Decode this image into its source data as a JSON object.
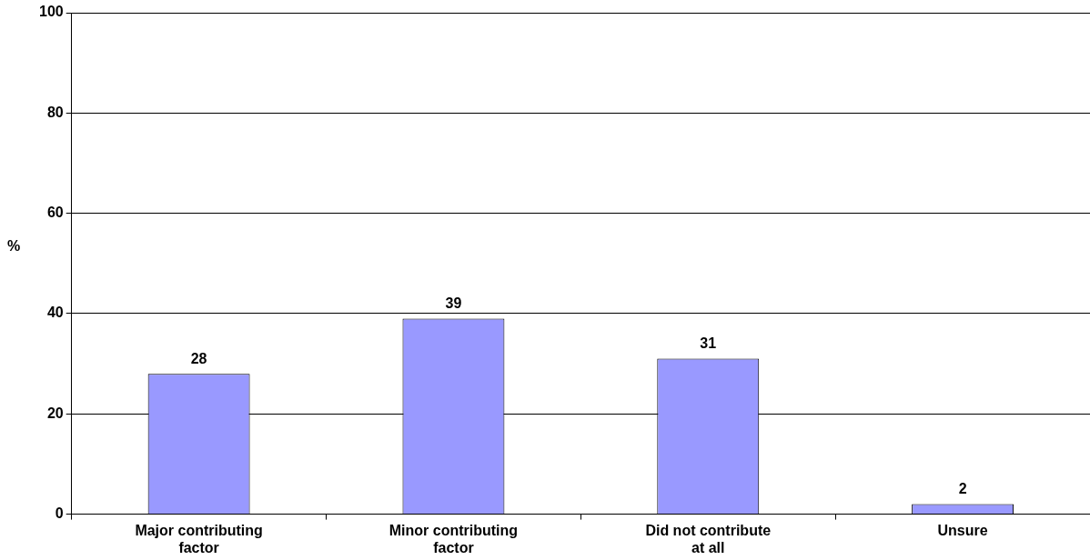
{
  "chart_data": {
    "type": "bar",
    "ylabel": "%",
    "categories": [
      "Major contributing factor",
      "Minor contributing factor",
      "Did not contribute at all",
      "Unsure"
    ],
    "values": [
      28,
      39,
      31,
      2
    ],
    "color": "#9999ff",
    "ylim": [
      0,
      100
    ],
    "yticks": [
      0,
      20,
      40,
      60,
      80,
      100
    ],
    "grid": "y",
    "data_labels": true
  }
}
